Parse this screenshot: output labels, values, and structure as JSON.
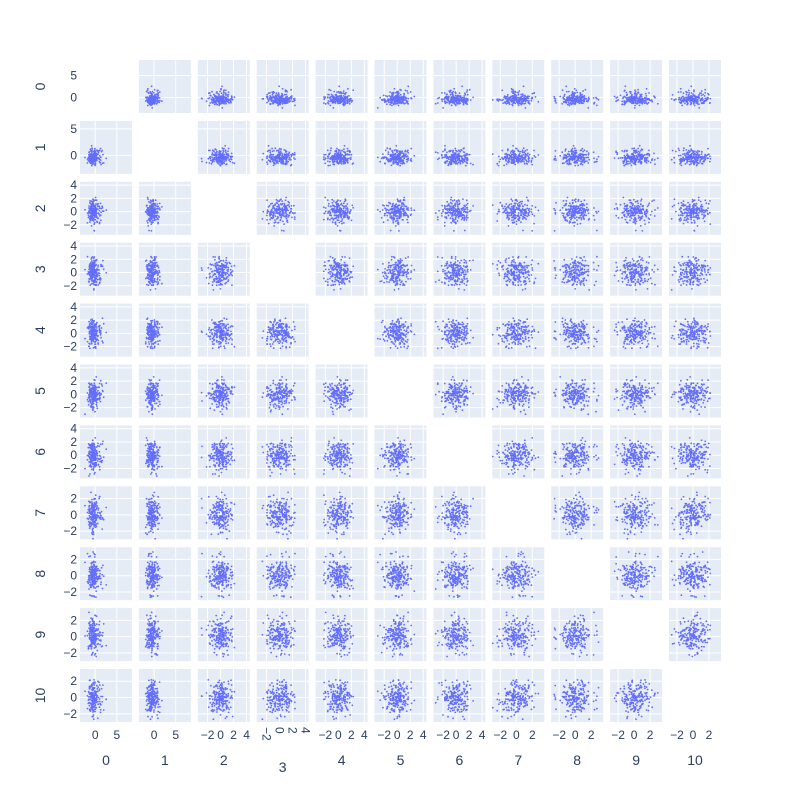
{
  "chart_data": {
    "type": "scatter",
    "subtype": "scatter-matrix",
    "dimensions": [
      "0",
      "1",
      "2",
      "3",
      "4",
      "5",
      "6",
      "7",
      "8",
      "9",
      "10"
    ],
    "n_points": 200,
    "diagonal_visible": false,
    "marker_color": "#636efa",
    "panel_background": "#e5ecf6",
    "gridline_color": "#ffffff",
    "axis_text_color": "#2a3f5f",
    "x_axes": [
      {
        "dimension": "0",
        "range": [
          -3.5,
          8.5
        ],
        "tickvals": [
          0,
          5
        ],
        "ticktext": [
          "0",
          "5"
        ]
      },
      {
        "dimension": "1",
        "range": [
          -3.5,
          8.5
        ],
        "tickvals": [
          0,
          5
        ],
        "ticktext": [
          "0",
          "5"
        ]
      },
      {
        "dimension": "2",
        "range": [
          -3.5,
          4.5
        ],
        "tickvals": [
          -2,
          0,
          2,
          4
        ],
        "ticktext": [
          "−2",
          "0",
          "2",
          "4"
        ]
      },
      {
        "dimension": "3",
        "range": [
          -3.5,
          4.5
        ],
        "tickvals": [
          -2,
          0,
          2,
          4
        ],
        "ticktext": [
          "−2",
          "0",
          "2",
          "4"
        ],
        "tick_rotation": 90
      },
      {
        "dimension": "4",
        "range": [
          -3.5,
          4.5
        ],
        "tickvals": [
          -2,
          0,
          2,
          4
        ],
        "ticktext": [
          "−2",
          "0",
          "2",
          "4"
        ]
      },
      {
        "dimension": "5",
        "range": [
          -3.5,
          4.5
        ],
        "tickvals": [
          -2,
          0,
          2,
          4
        ],
        "ticktext": [
          "−2",
          "0",
          "2",
          "4"
        ]
      },
      {
        "dimension": "6",
        "range": [
          -3.5,
          4.5
        ],
        "tickvals": [
          -2,
          0,
          2,
          4
        ],
        "ticktext": [
          "−2",
          "0",
          "2",
          "4"
        ]
      },
      {
        "dimension": "7",
        "range": [
          -3,
          3.5
        ],
        "tickvals": [
          -2,
          0,
          2
        ],
        "ticktext": [
          "−2",
          "0",
          "2"
        ]
      },
      {
        "dimension": "8",
        "range": [
          -3,
          3.5
        ],
        "tickvals": [
          -2,
          0,
          2
        ],
        "ticktext": [
          "−2",
          "0",
          "2"
        ]
      },
      {
        "dimension": "9",
        "range": [
          -3,
          3.5
        ],
        "tickvals": [
          -2,
          0,
          2
        ],
        "ticktext": [
          "−2",
          "0",
          "2"
        ]
      },
      {
        "dimension": "10",
        "range": [
          -3,
          3.5
        ],
        "tickvals": [
          -2,
          0,
          2
        ],
        "ticktext": [
          "−2",
          "0",
          "2"
        ]
      }
    ],
    "y_axes": [
      {
        "dimension": "0",
        "range": [
          -3.5,
          8.5
        ],
        "tickvals": [
          0,
          5
        ],
        "ticktext": [
          "0",
          "5"
        ]
      },
      {
        "dimension": "1",
        "range": [
          -3.5,
          6.5
        ],
        "tickvals": [
          0,
          5
        ],
        "ticktext": [
          "0",
          "5"
        ]
      },
      {
        "dimension": "2",
        "range": [
          -3.5,
          4.5
        ],
        "tickvals": [
          -2,
          0,
          2,
          4
        ],
        "ticktext": [
          "−2",
          "0",
          "2",
          "4"
        ]
      },
      {
        "dimension": "3",
        "range": [
          -3.5,
          4.5
        ],
        "tickvals": [
          -2,
          0,
          2,
          4
        ],
        "ticktext": [
          "−2",
          "0",
          "2",
          "4"
        ]
      },
      {
        "dimension": "4",
        "range": [
          -3.5,
          4.5
        ],
        "tickvals": [
          -2,
          0,
          2,
          4
        ],
        "ticktext": [
          "−2",
          "0",
          "2",
          "4"
        ]
      },
      {
        "dimension": "5",
        "range": [
          -3.5,
          4.5
        ],
        "tickvals": [
          -2,
          0,
          2,
          4
        ],
        "ticktext": [
          "−2",
          "0",
          "2",
          "4"
        ]
      },
      {
        "dimension": "6",
        "range": [
          -3.5,
          4.5
        ],
        "tickvals": [
          -2,
          0,
          2,
          4
        ],
        "ticktext": [
          "−2",
          "0",
          "2",
          "4"
        ]
      },
      {
        "dimension": "7",
        "range": [
          -3,
          3.5
        ],
        "tickvals": [
          -2,
          0,
          2
        ],
        "ticktext": [
          "−2",
          "0",
          "2"
        ]
      },
      {
        "dimension": "8",
        "range": [
          -3,
          3.5
        ],
        "tickvals": [
          -2,
          0,
          2
        ],
        "ticktext": [
          "−2",
          "0",
          "2"
        ]
      },
      {
        "dimension": "9",
        "range": [
          -3,
          3.5
        ],
        "tickvals": [
          -2,
          0,
          2
        ],
        "ticktext": [
          "−2",
          "0",
          "2"
        ]
      },
      {
        "dimension": "10",
        "range": [
          -3,
          3.5
        ],
        "tickvals": [
          -2,
          0,
          2
        ],
        "ticktext": [
          "−2",
          "0",
          "2"
        ]
      }
    ],
    "grid": true,
    "legend": "none"
  }
}
